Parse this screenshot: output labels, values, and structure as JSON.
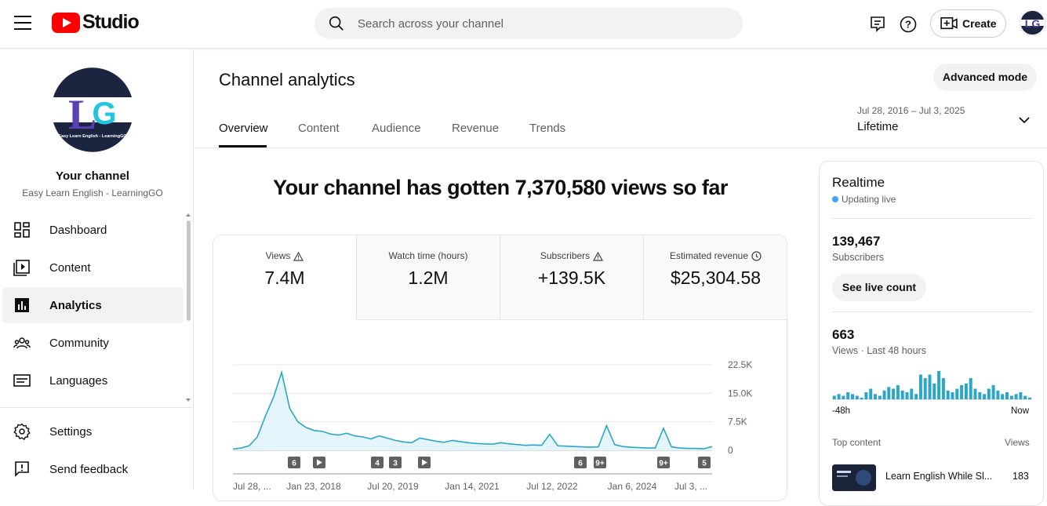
{
  "app": {
    "logo_text": "Studio"
  },
  "search": {
    "placeholder": "Search across your channel"
  },
  "header": {
    "create_label": "Create"
  },
  "sidebar": {
    "channel_title": "Your channel",
    "channel_name": "Easy Learn English - LearningGO",
    "avatar_caption": "Easy Learn English - LearningGO",
    "items": [
      {
        "label": "Dashboard",
        "icon": "dashboard-icon"
      },
      {
        "label": "Content",
        "icon": "content-icon"
      },
      {
        "label": "Analytics",
        "icon": "analytics-icon",
        "active": true
      },
      {
        "label": "Community",
        "icon": "community-icon"
      },
      {
        "label": "Languages",
        "icon": "languages-icon"
      },
      {
        "label": "Settings",
        "icon": "gear-icon"
      },
      {
        "label": "Send feedback",
        "icon": "feedback-icon"
      }
    ]
  },
  "main": {
    "title": "Channel analytics",
    "advanced_mode": "Advanced mode",
    "tabs": [
      {
        "label": "Overview",
        "active": true
      },
      {
        "label": "Content"
      },
      {
        "label": "Audience"
      },
      {
        "label": "Revenue"
      },
      {
        "label": "Trends"
      }
    ],
    "date_range": "Jul 28, 2016 – Jul 3, 2025",
    "date_label": "Lifetime",
    "headline": "Your channel has gotten 7,370,580 views so far",
    "metrics": [
      {
        "label": "Views",
        "value": "7.4M",
        "icon": "warning-icon"
      },
      {
        "label": "Watch time (hours)",
        "value": "1.2M"
      },
      {
        "label": "Subscribers",
        "value": "+139.5K",
        "icon": "warning-icon"
      },
      {
        "label": "Estimated revenue",
        "value": "$25,304.58",
        "icon": "clock-icon"
      }
    ]
  },
  "chart_data": {
    "type": "area",
    "y_ticks": [
      "22.5K",
      "15.0K",
      "7.5K",
      "0"
    ],
    "ylim": [
      0,
      22500
    ],
    "x_ticks": [
      "Jul 28, ...",
      "Jan 23, 2018",
      "Jul 20, 2019",
      "Jan 14, 2021",
      "Jul 12, 2022",
      "Jan 6, 2024",
      "Jul 3, ..."
    ],
    "series": [
      {
        "values": [
          300,
          600,
          1200,
          3500,
          9000,
          14000,
          20500,
          11000,
          7500,
          6000,
          5200,
          5000,
          4300,
          4000,
          4500,
          3800,
          3500,
          3000,
          3800,
          3200,
          2600,
          2200,
          2000,
          3200,
          2800,
          2400,
          2100,
          2600,
          2300,
          2000,
          1800,
          1700,
          1600,
          2000,
          1700,
          1500,
          1300,
          1400,
          1300,
          4200,
          1200,
          1100,
          1000,
          900,
          800,
          900,
          6500,
          1500,
          1000,
          800,
          700,
          600,
          600,
          5800,
          900,
          600,
          500,
          500,
          400,
          1000
        ]
      }
    ],
    "markers": [
      "6",
      "play",
      "4",
      "3",
      "play",
      "6",
      "9+",
      "9+",
      "5"
    ],
    "grid": true
  },
  "realtime": {
    "title": "Realtime",
    "live_label": "Updating live",
    "subscribers_value": "139,467",
    "subscribers_label": "Subscribers",
    "see_live": "See live count",
    "views_value": "663",
    "views_label": "Views · Last 48 hours",
    "axis_start": "-48h",
    "axis_end": "Now",
    "top_content": "Top content",
    "top_views": "Views",
    "video_title": "Learn English While Sl...",
    "video_views": "183",
    "bars": [
      2,
      3,
      2,
      4,
      3,
      2,
      1,
      4,
      6,
      3,
      2,
      5,
      7,
      6,
      8,
      5,
      4,
      6,
      3,
      14,
      12,
      14,
      9,
      16,
      12,
      5,
      4,
      6,
      8,
      9,
      12,
      6,
      4,
      3,
      6,
      8,
      5,
      3,
      4,
      2,
      3,
      4,
      2,
      1
    ]
  }
}
